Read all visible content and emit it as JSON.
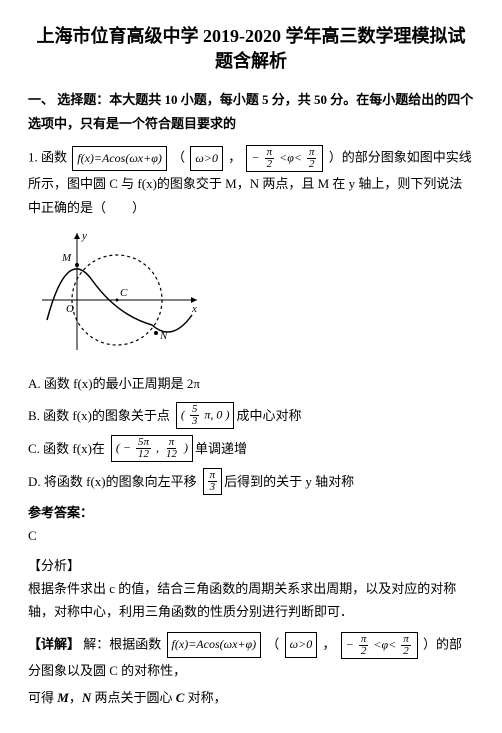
{
  "title": "上海市位育高级中学 2019-2020 学年高三数学理模拟试题含解析",
  "section1": "一、 选择题：本大题共 10 小题，每小题 5 分，共 50 分。在每小题给出的四个选项中，只有是一个符合题目要求的",
  "q1_prefix": "1. 函数 ",
  "q1_formula1": "f(x)=Acos(ωx+φ)",
  "q1_mid1": "（",
  "q1_formula_omega": "ω>0",
  "q1_comma": "，",
  "q1_phi_left": "−",
  "q1_phi_pi": "π",
  "q1_phi_mid": "<φ<",
  "q1_phi_right_pi": "π",
  "q1_mid2": "）的部分图象如图中实线所示，图中圆 C 与 f(x)的图象交于 M，N 两点，且 M 在 y 轴上，则下列说法中正确的是（　　）",
  "optA": "A. 函数 f(x)的最小正周期是 2π",
  "optB_pre": "B. 函数 f(x)的图象关于点",
  "optB_pt_open": "(",
  "optB_pt_x_num": "5",
  "optB_pt_x_den": "3",
  "optB_pt_pi": "π, 0",
  "optB_pt_close": ")",
  "optB_post": "成中心对称",
  "optC_pre": "C. 函数 f(x)在",
  "optC_open": "(",
  "optC_l_sign": "−",
  "optC_l_num": "5π",
  "optC_l_den": "12",
  "optC_sep": ",",
  "optC_r_num": "π",
  "optC_r_den": "12",
  "optC_close": ")",
  "optC_post": "单调递增",
  "optD_pre": "D. 将函数 f(x)的图象向左平移",
  "optD_num": "π",
  "optD_den": "3",
  "optD_post": "后得到的关于 y 轴对称",
  "ansHead": "参考答案：",
  "ans": "C",
  "analysisHead": "【分析】",
  "analysisBody": "根据条件求出 c 的值，结合三角函数的周期关系求出周期，以及对应的对称轴，对称中心，利用三角函数的性质分别进行判断即可．",
  "detailTag": "【详解】",
  "detail_pre": "解：根据函数 ",
  "detail_formula": "f(x)=Acos(ωx+φ)",
  "detail_mid1": "（",
  "detail_omega": "ω>0",
  "detail_comma": "，",
  "detail_mid2": "）的部分图象以及圆 C 的对称性，",
  "last": "可得 M，N 两点关于圆心 C 对称，",
  "figure": {
    "width": 170,
    "height": 130,
    "axis_color": "#000000",
    "curve_color": "#000000",
    "circle_color": "#000000",
    "circle_dash": "3,3",
    "x_label": "x",
    "y_label": "y",
    "o_label": "O",
    "m_label": "M",
    "c_label": "C",
    "n_label": "N"
  }
}
